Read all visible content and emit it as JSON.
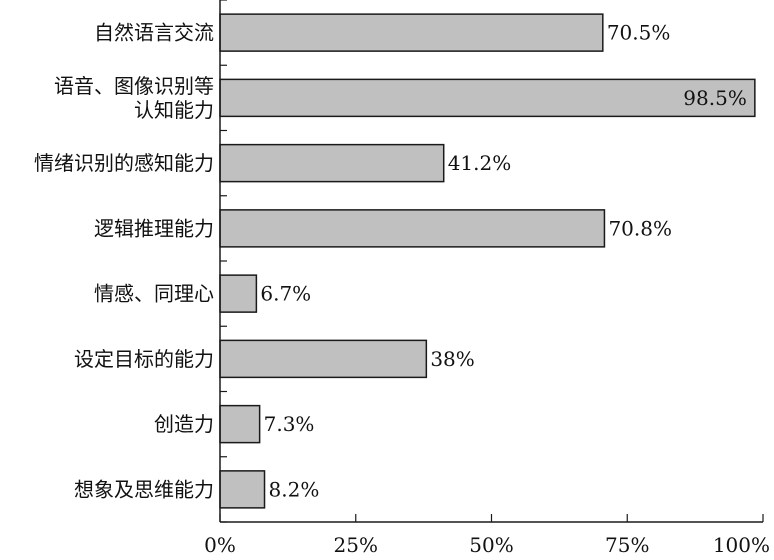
{
  "chart_data": {
    "type": "bar",
    "orientation": "horizontal",
    "categories": [
      [
        "自然语言交流"
      ],
      [
        "语音、图像识别等",
        "认知能力"
      ],
      [
        "情绪识别的感知能力"
      ],
      [
        "逻辑推理能力"
      ],
      [
        "情感、同理心"
      ],
      [
        "设定目标的能力"
      ],
      [
        "创造力"
      ],
      [
        "想象及思维能力"
      ]
    ],
    "values": [
      70.5,
      98.5,
      41.2,
      70.8,
      6.7,
      38,
      7.3,
      8.2
    ],
    "value_labels": [
      "70.5%",
      "98.5%",
      "41.2%",
      "70.8%",
      "6.7%",
      "38%",
      "7.3%",
      "8.2%"
    ],
    "inside_label_indices": [
      1
    ],
    "xlim": [
      0,
      100
    ],
    "xticks": [
      0,
      25,
      50,
      75,
      100
    ],
    "xtick_labels": [
      "0%",
      "25%",
      "50%",
      "75%",
      "100%"
    ],
    "title": "",
    "xlabel": "",
    "ylabel": "",
    "grid": false,
    "colors": {
      "bar_fill": "#c0c0c0",
      "bar_stroke": "#1a1a1a",
      "axis": "#1a1a1a",
      "text": "#111111"
    }
  }
}
